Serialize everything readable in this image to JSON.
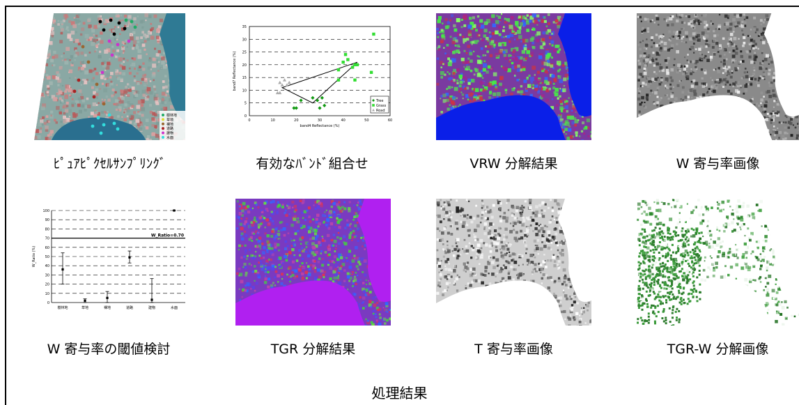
{
  "panels": [
    {
      "caption": "ﾋﾟｭｱﾋﾟｸｾﾙｻﾝﾌﾟﾘﾝｸﾞ",
      "kind": "satellite-map",
      "legend": [
        {
          "label": "樹林地",
          "color": "#22aa66"
        },
        {
          "label": "草地",
          "color": "#dddd33"
        },
        {
          "label": "裸地",
          "color": "#996633"
        },
        {
          "label": "道路",
          "color": "#aa2222"
        },
        {
          "label": "建物",
          "color": "#cc33cc"
        },
        {
          "label": "水面",
          "color": "#33dddd"
        }
      ]
    },
    {
      "caption": "有効なﾊﾞﾝﾄﾞ組合せ",
      "kind": "scatter-plot"
    },
    {
      "caption": "VRW 分解結果",
      "kind": "rgb-map"
    },
    {
      "caption": "W 寄与率画像",
      "kind": "grayscale-map"
    },
    {
      "caption": "W 寄与率の閾値検討",
      "kind": "errorbar-plot"
    },
    {
      "caption": "TGR 分解結果",
      "kind": "rgb-map-magenta"
    },
    {
      "caption": "T 寄与率画像",
      "kind": "grayscale-map-light"
    },
    {
      "caption": "TGR-W 分解画像",
      "kind": "green-map"
    }
  ],
  "bottom_title": "処理結果",
  "chart_data": [
    {
      "type": "scatter",
      "xlabel": "band4 Reflectance (%)",
      "ylabel": "band7 Reflectance (%)",
      "xlim": [
        0,
        60
      ],
      "ylim": [
        0,
        35
      ],
      "xticks": [
        0,
        10,
        20,
        30,
        40,
        50,
        60
      ],
      "yticks": [
        0,
        5,
        10,
        15,
        20,
        25,
        30,
        35
      ],
      "legend_position": "bottom-right",
      "series": [
        {
          "name": "Tree",
          "marker": "diamond",
          "color": "#119911",
          "points": [
            [
              19,
              3
            ],
            [
              20,
              3
            ],
            [
              22,
              6
            ],
            [
              27,
              7
            ],
            [
              29,
              6
            ],
            [
              31,
              7
            ],
            [
              30,
              3
            ],
            [
              32,
              4
            ]
          ]
        },
        {
          "name": "Grass",
          "marker": "square",
          "color": "#33dd33",
          "points": [
            [
              38,
              14
            ],
            [
              38,
              18
            ],
            [
              40,
              21
            ],
            [
              41,
              24
            ],
            [
              42,
              22
            ],
            [
              44,
              19
            ],
            [
              45,
              20
            ],
            [
              45,
              14
            ],
            [
              52,
              17
            ],
            [
              53,
              32
            ],
            [
              46,
              20
            ]
          ]
        },
        {
          "name": "Road",
          "marker": "triangle",
          "color": "#aaaaaa",
          "points": [
            [
              12,
              9
            ],
            [
              13,
              13
            ],
            [
              13,
              9
            ],
            [
              14,
              12
            ],
            [
              15,
              14
            ],
            [
              16,
              12
            ],
            [
              17,
              13
            ]
          ]
        }
      ],
      "triangle": [
        [
          14,
          11
        ],
        [
          27,
          5
        ],
        [
          46,
          21
        ]
      ]
    },
    {
      "type": "errorbar",
      "ylabel": "W_Ratio (%)",
      "categories": [
        "樹林地",
        "草地",
        "裸地",
        "道路",
        "建物",
        "水面"
      ],
      "ylim": [
        0,
        100
      ],
      "yticks": [
        0,
        10,
        20,
        30,
        40,
        50,
        60,
        70,
        80,
        90,
        100
      ],
      "threshold": {
        "value": 70,
        "label": "W_Ratio=0.70"
      },
      "values": [
        36,
        2,
        5,
        49,
        3,
        100
      ],
      "lower": [
        20,
        0,
        0,
        43,
        0,
        100
      ],
      "upper": [
        54,
        4,
        12,
        56,
        26,
        100
      ]
    }
  ]
}
